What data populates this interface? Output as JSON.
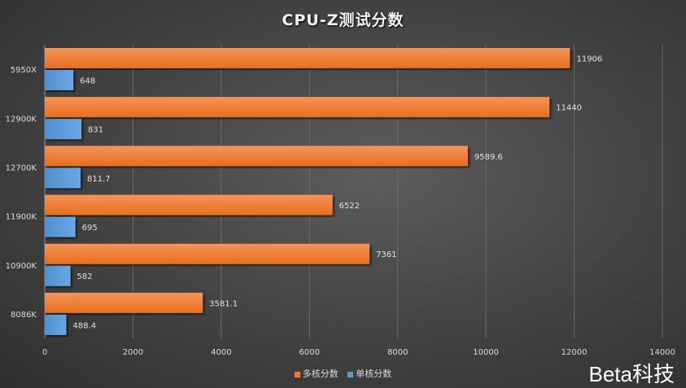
{
  "chart_data": {
    "type": "bar",
    "orientation": "horizontal",
    "title": "CPU-Z测试分数",
    "categories": [
      "5950X",
      "12900K",
      "12700K",
      "11900K",
      "10900K",
      "8086K"
    ],
    "series": [
      {
        "name": "多核分数",
        "color": "#ED7D31",
        "values": [
          11906,
          11440,
          9589.6,
          6522,
          7361,
          3581.1
        ],
        "labels": [
          "11906",
          "11440",
          "9589.6",
          "6522",
          "7361",
          "3581.1"
        ]
      },
      {
        "name": "单核分数",
        "color": "#5B9BD5",
        "values": [
          648,
          831,
          811.7,
          695,
          582,
          488.4
        ],
        "labels": [
          "648",
          "831",
          "811.7",
          "695",
          "582",
          "488.4"
        ]
      }
    ],
    "xlim": [
      0,
      14000
    ],
    "xticks": [
      "0",
      "2000",
      "4000",
      "6000",
      "8000",
      "10000",
      "12000",
      "14000"
    ],
    "grid": true,
    "legend": "bottom"
  },
  "watermark": "Beta科技"
}
